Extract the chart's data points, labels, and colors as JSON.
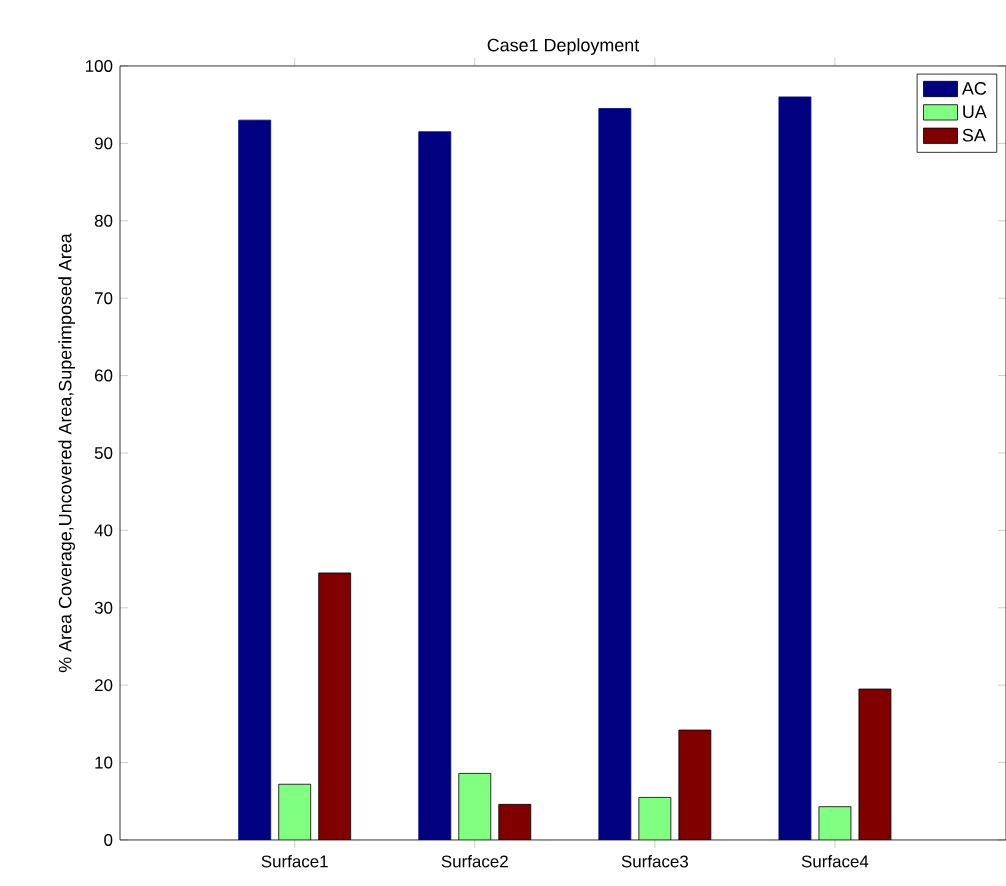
{
  "chart_data": {
    "type": "bar",
    "title": "Case1 Deployment",
    "ylabel": "% Area Coverage,Uncovered Area,Superimposed Area",
    "categories": [
      "Surface1",
      "Surface2",
      "Surface3",
      "Surface4"
    ],
    "series": [
      {
        "name": "AC",
        "color": "#000080",
        "values": [
          93,
          91.5,
          94.5,
          96
        ]
      },
      {
        "name": "UA",
        "color": "#80ff80",
        "values": [
          7.2,
          8.6,
          5.5,
          4.3
        ]
      },
      {
        "name": "SA",
        "color": "#800000",
        "values": [
          34.5,
          4.6,
          14.2,
          19.5
        ]
      }
    ],
    "ylim": [
      0,
      100
    ],
    "yticks": [
      0,
      10,
      20,
      30,
      40,
      50,
      60,
      70,
      80,
      90,
      100
    ],
    "grid": false,
    "legend": "top right"
  }
}
